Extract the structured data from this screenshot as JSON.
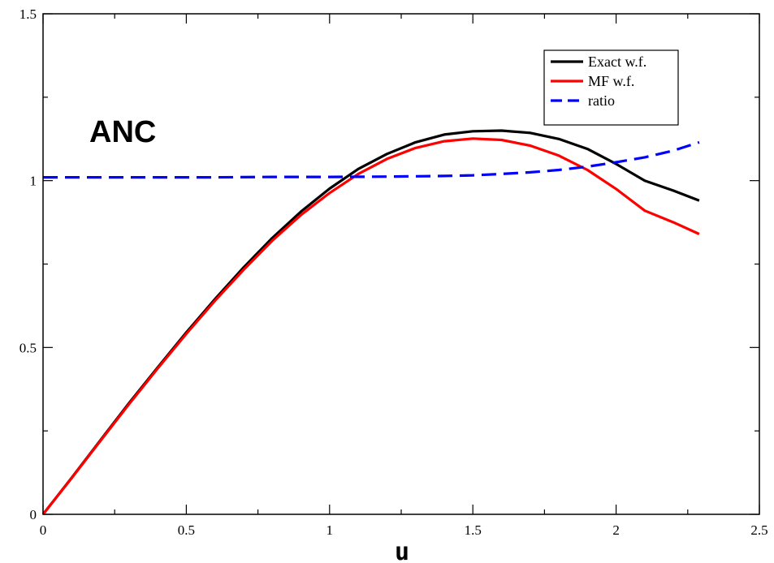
{
  "chart_data": {
    "type": "line",
    "title": "",
    "annotation": "ANC",
    "xlabel": "u",
    "ylabel": "",
    "xlim": [
      0,
      2.5
    ],
    "ylim": [
      0,
      1.5
    ],
    "x_ticks": [
      "0",
      "0.5",
      "1",
      "1.5",
      "2",
      "2.5"
    ],
    "y_ticks": [
      "0",
      "0.5",
      "1",
      "1.5"
    ],
    "grid": false,
    "legend_position": "top-right",
    "series": [
      {
        "name": "Exact w.f.",
        "color": "#000000",
        "dash": "solid",
        "x": [
          0,
          0.1,
          0.2,
          0.3,
          0.4,
          0.5,
          0.6,
          0.7,
          0.8,
          0.9,
          1.0,
          1.1,
          1.2,
          1.3,
          1.4,
          1.5,
          1.6,
          1.7,
          1.8,
          1.9,
          2.0,
          2.1,
          2.2,
          2.29
        ],
        "y": [
          0,
          0.11,
          0.222,
          0.333,
          0.44,
          0.545,
          0.645,
          0.74,
          0.828,
          0.907,
          0.976,
          1.035,
          1.08,
          1.115,
          1.138,
          1.148,
          1.15,
          1.143,
          1.125,
          1.095,
          1.05,
          1.0,
          0.97,
          0.94
        ]
      },
      {
        "name": "MF w.f.",
        "color": "#ff0000",
        "dash": "solid",
        "x": [
          0,
          0.1,
          0.2,
          0.3,
          0.4,
          0.5,
          0.6,
          0.7,
          0.8,
          0.9,
          1.0,
          1.1,
          1.2,
          1.3,
          1.4,
          1.5,
          1.6,
          1.7,
          1.8,
          1.9,
          2.0,
          2.1,
          2.2,
          2.29
        ],
        "y": [
          0,
          0.109,
          0.22,
          0.33,
          0.437,
          0.541,
          0.64,
          0.733,
          0.82,
          0.897,
          0.963,
          1.02,
          1.065,
          1.098,
          1.118,
          1.126,
          1.122,
          1.105,
          1.075,
          1.032,
          0.975,
          0.91,
          0.875,
          0.84
        ]
      },
      {
        "name": "ratio",
        "color": "#0000ff",
        "dash": "dashed",
        "x": [
          0,
          0.2,
          0.4,
          0.6,
          0.8,
          1.0,
          1.2,
          1.4,
          1.5,
          1.6,
          1.7,
          1.8,
          1.9,
          2.0,
          2.1,
          2.2,
          2.29
        ],
        "y": [
          1.01,
          1.01,
          1.01,
          1.01,
          1.011,
          1.011,
          1.012,
          1.014,
          1.016,
          1.02,
          1.025,
          1.032,
          1.042,
          1.055,
          1.07,
          1.09,
          1.115
        ]
      }
    ]
  }
}
